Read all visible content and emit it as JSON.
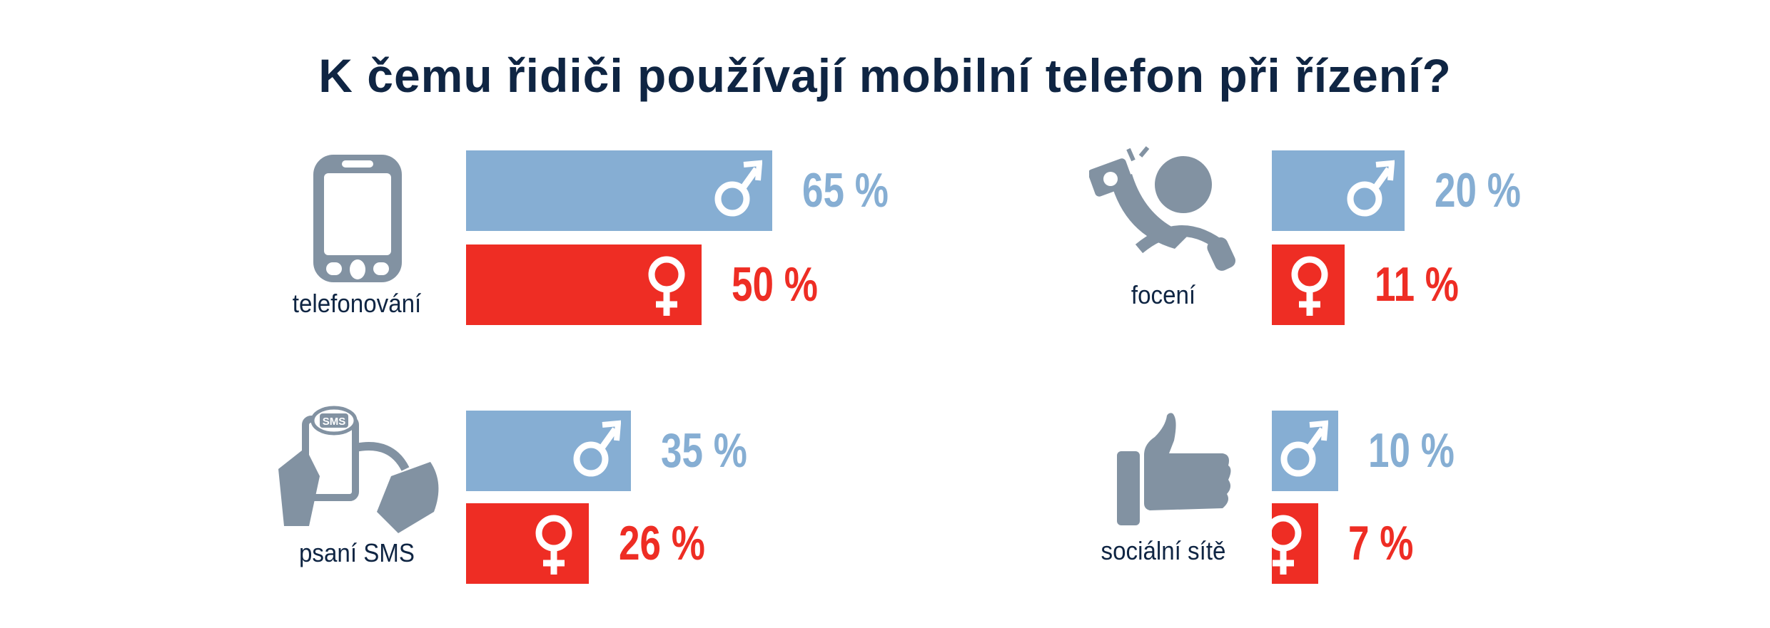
{
  "title": "K čemu řidiči používají mobilní telefon při řízení?",
  "colors": {
    "male": "#86aed3",
    "female": "#ee2d24",
    "icon": "#8292a2",
    "title": "#0f2543"
  },
  "chart_data": {
    "type": "bar",
    "title": "K čemu řidiči používají mobilní telefon při řízení?",
    "unit": "%",
    "series": [
      {
        "name": "muži",
        "symbol": "♂"
      },
      {
        "name": "ženy",
        "symbol": "♀"
      }
    ],
    "categories": [
      {
        "label": "telefonování",
        "icon": "smartphone-icon",
        "male": 65,
        "female": 50,
        "male_text": "65 %",
        "female_text": "50 %"
      },
      {
        "label": "focení",
        "icon": "selfie-camera-icon",
        "male": 20,
        "female": 11,
        "male_text": "20 %",
        "female_text": "11 %"
      },
      {
        "label": "psaní SMS",
        "icon": "sms-texting-icon",
        "male": 35,
        "female": 26,
        "male_text": "35 %",
        "female_text": "26 %"
      },
      {
        "label": "sociální sítě",
        "icon": "thumbs-up-icon",
        "male": 10,
        "female": 7,
        "male_text": "10 %",
        "female_text": "7 %"
      }
    ]
  },
  "sms_bubble_text": "SMS"
}
